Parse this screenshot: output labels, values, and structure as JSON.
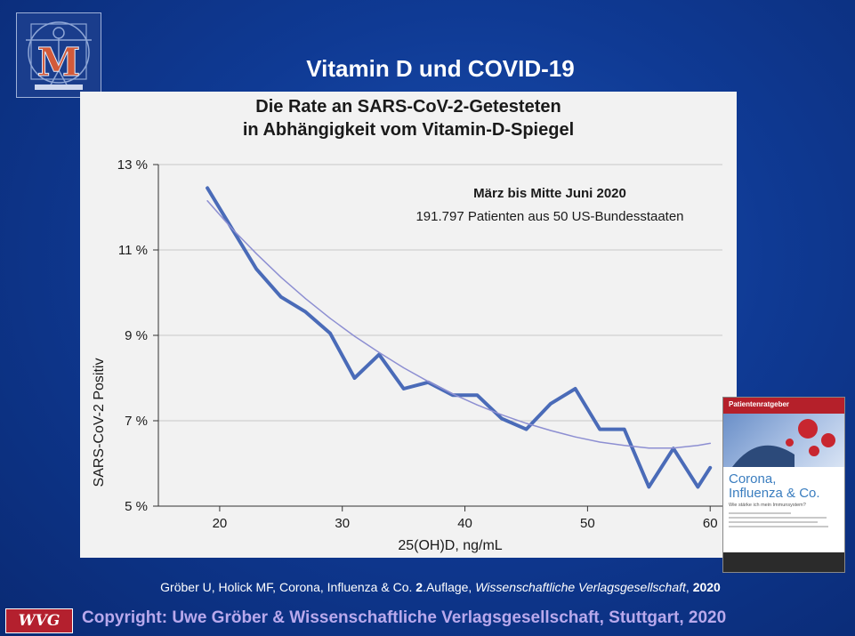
{
  "slide_title": "Vitamin D und COVID-19",
  "chart_data": {
    "type": "line",
    "title_line1": "Die Rate an SARS-CoV-2-Getesteten",
    "title_line2": "in Abhängigkeit vom Vitamin-D-Spiegel",
    "annotation_bold": "März bis Mitte Juni 2020",
    "annotation": "191.797 Patienten aus 50 US-Bundesstaaten",
    "xlabel": "25(OH)D, ng/mL",
    "ylabel": "SARS-CoV-2 Positiv",
    "xlim": [
      15,
      61
    ],
    "ylim": [
      5,
      13
    ],
    "x_ticks": [
      20,
      30,
      40,
      50,
      60
    ],
    "y_ticks": [
      5,
      7,
      9,
      11,
      13
    ],
    "y_tick_labels": [
      "5 %",
      "7 %",
      "9 %",
      "11 %",
      "13 %"
    ],
    "grid": true,
    "series": [
      {
        "color": "#4a6bb8",
        "style": "observed",
        "x": [
          19,
          21,
          23,
          25,
          27,
          29,
          31,
          33,
          35,
          37,
          39,
          41,
          43,
          45,
          47,
          49,
          51,
          53,
          55,
          57,
          59,
          60
        ],
        "y": [
          12.45,
          11.5,
          10.55,
          9.9,
          9.55,
          9.05,
          8.0,
          8.55,
          7.75,
          7.9,
          7.6,
          7.6,
          7.05,
          6.8,
          7.4,
          7.75,
          6.8,
          6.8,
          5.45,
          6.35,
          5.45,
          5.9
        ]
      },
      {
        "color": "#8d8fd2",
        "style": "fit",
        "x": [
          19,
          21,
          23,
          25,
          27,
          29,
          31,
          33,
          35,
          37,
          39,
          41,
          43,
          45,
          47,
          49,
          51,
          53,
          55,
          57,
          59,
          60
        ],
        "y": [
          12.15,
          11.5,
          10.91,
          10.36,
          9.86,
          9.4,
          8.98,
          8.6,
          8.24,
          7.92,
          7.63,
          7.37,
          7.14,
          6.94,
          6.77,
          6.62,
          6.5,
          6.42,
          6.36,
          6.36,
          6.42,
          6.47
        ]
      }
    ]
  },
  "book": {
    "header": "Patientenratgeber",
    "title_line1": "Corona,",
    "title_line2": "Influenza & Co.",
    "subtitle": "Wie stärke ich mein Immunsystem?"
  },
  "citation": {
    "prefix": "Gröber U, Holick MF, Corona, Influenza & Co. ",
    "edition": "2",
    "edition_suffix": ".Auflage, ",
    "publisher": "Wissenschaftliche Verlagsgesellschaft",
    "sep": ", ",
    "year": "2020"
  },
  "footer_logo_text": "WVG",
  "copyright": "Copyright: Uwe Gröber & Wissenschaftliche Verlagsgesellschaft, Stuttgart, 2020",
  "colors": {
    "background": "#0f3a94",
    "chart_panel": "#f2f2f2",
    "observed_line": "#4a6bb8",
    "fit_line": "#8d8fd2",
    "copyright_text": "#b9a9ec",
    "footer_logo": "#b4202e"
  },
  "icons": {
    "top_left_logo": "vitruvian-man-logo",
    "footer_logo": "wvg-logo",
    "book_cover": "book-cover"
  }
}
